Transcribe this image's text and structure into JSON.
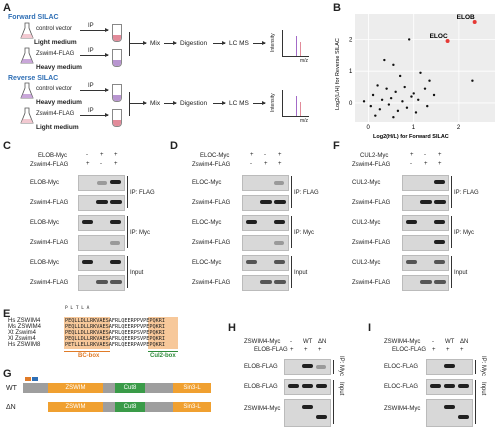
{
  "panels": {
    "A": "A",
    "B": "B",
    "C": "C",
    "D": "D",
    "E": "E",
    "F": "F",
    "G": "G",
    "H": "H",
    "I": "I"
  },
  "panel_a": {
    "forward_title": "Forward SILAC",
    "reverse_title": "Reverse SILAC",
    "forward": {
      "row1_label": "control vector",
      "row1_medium": "Light medium",
      "row2_label": "Zswim4-FLAG",
      "row2_medium": "Heavy medium"
    },
    "reverse": {
      "row1_label": "control vector",
      "row1_medium": "Heavy medium",
      "row2_label": "Zswim4-FLAG",
      "row2_medium": "Light medium"
    },
    "ip": "IP",
    "mix": "Mix",
    "digestion": "Digestion",
    "lcms": "LC MS",
    "intensity": "Intensity",
    "mz": "m/z"
  },
  "chart_data": {
    "type": "scatter",
    "title": "",
    "xlabel": "Log2(H/L) for Forward SILAC",
    "ylabel": "Log2(L/H) for Reverse SILAC",
    "xlim": [
      -0.3,
      2.8
    ],
    "ylim": [
      -0.6,
      2.8
    ],
    "xticks": [
      0,
      1,
      2
    ],
    "yticks": [
      0,
      1,
      2
    ],
    "grid": true,
    "points": [
      {
        "x": 2.35,
        "y": 2.55,
        "label": "ELOB",
        "color": "#e53935"
      },
      {
        "x": 1.75,
        "y": 1.95,
        "label": "ELOC",
        "color": "#e53935"
      },
      {
        "x": 0.9,
        "y": 2.0,
        "label": "",
        "color": "#111111"
      },
      {
        "x": 0.35,
        "y": 1.35,
        "label": "",
        "color": "#111111"
      },
      {
        "x": 0.55,
        "y": 1.2,
        "label": "",
        "color": "#111111"
      },
      {
        "x": 0.7,
        "y": 0.85,
        "label": "",
        "color": "#111111"
      },
      {
        "x": 1.15,
        "y": 0.95,
        "label": "",
        "color": "#111111"
      },
      {
        "x": 1.35,
        "y": 0.7,
        "label": "",
        "color": "#111111"
      },
      {
        "x": 2.3,
        "y": 0.7,
        "label": "",
        "color": "#111111"
      },
      {
        "x": 0.2,
        "y": 0.55,
        "label": "",
        "color": "#111111"
      },
      {
        "x": 0.4,
        "y": 0.45,
        "label": "",
        "color": "#111111"
      },
      {
        "x": 0.6,
        "y": 0.35,
        "label": "",
        "color": "#111111"
      },
      {
        "x": 0.8,
        "y": 0.5,
        "label": "",
        "color": "#111111"
      },
      {
        "x": 1.0,
        "y": 0.3,
        "label": "",
        "color": "#111111"
      },
      {
        "x": 1.25,
        "y": 0.45,
        "label": "",
        "color": "#111111"
      },
      {
        "x": 0.1,
        "y": 0.25,
        "label": "",
        "color": "#111111"
      },
      {
        "x": 0.3,
        "y": 0.1,
        "label": "",
        "color": "#111111"
      },
      {
        "x": 0.5,
        "y": 0.15,
        "label": "",
        "color": "#111111"
      },
      {
        "x": 0.75,
        "y": 0.05,
        "label": "",
        "color": "#111111"
      },
      {
        "x": 0.95,
        "y": 0.2,
        "label": "",
        "color": "#111111"
      },
      {
        "x": 1.1,
        "y": 0.1,
        "label": "",
        "color": "#111111"
      },
      {
        "x": 1.45,
        "y": 0.25,
        "label": "",
        "color": "#111111"
      },
      {
        "x": -0.1,
        "y": 0.05,
        "label": "",
        "color": "#111111"
      },
      {
        "x": 0.05,
        "y": -0.1,
        "label": "",
        "color": "#111111"
      },
      {
        "x": 0.25,
        "y": -0.2,
        "label": "",
        "color": "#111111"
      },
      {
        "x": 0.45,
        "y": -0.05,
        "label": "",
        "color": "#111111"
      },
      {
        "x": 0.65,
        "y": -0.25,
        "label": "",
        "color": "#111111"
      },
      {
        "x": 0.85,
        "y": -0.15,
        "label": "",
        "color": "#111111"
      },
      {
        "x": 1.05,
        "y": -0.3,
        "label": "",
        "color": "#111111"
      },
      {
        "x": 1.3,
        "y": -0.1,
        "label": "",
        "color": "#111111"
      },
      {
        "x": 0.15,
        "y": -0.4,
        "label": "",
        "color": "#111111"
      },
      {
        "x": 0.55,
        "y": -0.45,
        "label": "",
        "color": "#111111"
      }
    ]
  },
  "panel_c": {
    "row_elob_myc": "ELOB-Myc",
    "row_zswim4_flag": "Zswim4-FLAG",
    "lanes_a": [
      "-",
      "+",
      "+"
    ],
    "lanes_b": [
      "+",
      "-",
      "+"
    ],
    "blots": [
      "ELOB-Myc",
      "Zswim4-FLAG",
      "ELOB-Myc",
      "Zswim4-FLAG",
      "ELOB-Myc",
      "Zswim4-FLAG"
    ],
    "groups": [
      "IP: FLAG",
      "IP: Myc",
      "Input"
    ]
  },
  "panel_d": {
    "row_eloc_myc": "ELOC-Myc",
    "row_zswim4_flag": "Zswim4-FLAG",
    "lanes_a": [
      "+",
      "-",
      "+"
    ],
    "lanes_b": [
      "-",
      "+",
      "+"
    ],
    "blots": [
      "ELOC-Myc",
      "Zswim4-FLAG",
      "ELOC-Myc",
      "Zswim4-FLAG",
      "ELOC-Myc",
      "Zswim4-FLAG"
    ],
    "groups": [
      "IP: FLAG",
      "IP: Myc",
      "Input"
    ]
  },
  "panel_f": {
    "row_cul2_myc": "CUL2-Myc",
    "row_zswim4_flag": "Zswim4-FLAG",
    "lanes_a": [
      "+",
      "-",
      "+"
    ],
    "lanes_b": [
      "-",
      "+",
      "+"
    ],
    "blots": [
      "CUL2-Myc",
      "Zswim4-FLAG",
      "CUL2-Myc",
      "Zswim4-FLAG",
      "CUL2-Myc",
      "Zswim4-FLAG"
    ],
    "groups": [
      "IP: FLAG",
      "IP: Myc",
      "Input"
    ]
  },
  "panel_e": {
    "species": [
      "Hs ZSWIM4",
      "Ms ZSWIM4",
      "Xt Zswim4",
      "Xl Zswim4",
      "Hs ZSWIM8"
    ],
    "sequences": [
      "PEQLLDLLRKVAESAFRLQEERPPVPEPQKRI",
      "PEQLLDLLRKVAESAFRLQEERPPVPEPQKRI",
      "PEQLLDLLRKVAESAFRLQEERPSVPEPQKRI",
      "PEQLLDLLRKVAESAFRLQEERPSVPEPQKRI",
      "PETLLELLRKVAESAFRLQEERPAVPEPQKRI"
    ],
    "mutation_marks": "P  L  T  L   A",
    "bc_box": "BC-box",
    "cul2_box": "Cul2-box"
  },
  "panel_g": {
    "wt": "WT",
    "dn": "ΔN",
    "domains": [
      "ZSWIM",
      "Cut8",
      "Sin3-L"
    ]
  },
  "panel_h": {
    "row_zswim4_myc": "ZSWIM4-Myc",
    "row_elob_flag": "ELOB-FLAG",
    "lanes_top": [
      "-",
      "WT",
      "ΔN"
    ],
    "lanes_bottom": [
      "+",
      "+",
      "+"
    ],
    "blots": [
      "ELOB-FLAG",
      "ELOB-FLAG",
      "ZSWIM4-Myc"
    ],
    "groups": [
      "IP: Myc",
      "Input"
    ]
  },
  "panel_i": {
    "row_zswim4_myc": "ZSWIM4-Myc",
    "row_eloc_flag": "ELOC-FLAG",
    "lanes_top": [
      "-",
      "WT",
      "ΔN"
    ],
    "lanes_bottom": [
      "+",
      "+",
      "+"
    ],
    "blots": [
      "ELOC-FLAG",
      "ELOC-FLAG",
      "ZSWIM4-Myc"
    ],
    "groups": [
      "IP: Myc",
      "Input"
    ]
  },
  "colors": {
    "blue_label": "#2f6fb5",
    "red_point": "#e53935",
    "bc_box": "#e07b28",
    "cul2_box": "#2e8b3a",
    "zswim_domain": "#f0a030",
    "cut8_domain": "#3a9b48",
    "sin3_domain": "#f0a030",
    "gray_domain": "#9e9e9e"
  }
}
